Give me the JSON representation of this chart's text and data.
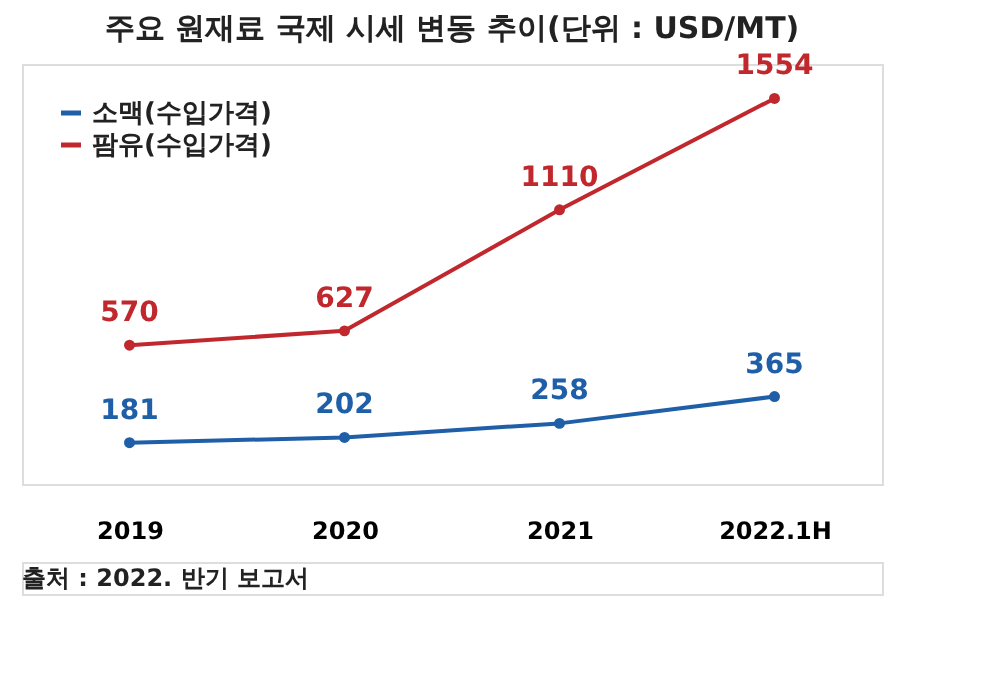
{
  "chart_data": {
    "type": "line",
    "title": "주요 원재료 국제 시세 변동 추이(단위 : USD/MT)",
    "categories": [
      "2019",
      "2020",
      "2021",
      "2022.1H"
    ],
    "series": [
      {
        "name": "소맥(수입가격)",
        "color": "#1f5fa8",
        "values": [
          181,
          202,
          258,
          365
        ]
      },
      {
        "name": "팜유(수입가격)",
        "color": "#c0282d",
        "values": [
          570,
          627,
          1110,
          1554
        ]
      }
    ],
    "data_labels": true,
    "marker": "circle",
    "line_style": "solid",
    "grid": false,
    "legend": "top left",
    "annotations": [
      "출처 : 2022. 반기 보고서"
    ]
  }
}
